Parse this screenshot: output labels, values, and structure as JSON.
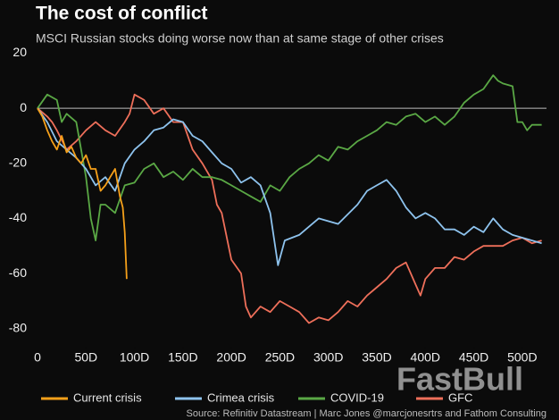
{
  "chart_data": {
    "type": "line",
    "title": "The cost of conflict",
    "subtitle": "MSCI Russian stocks doing worse now than at same stage of other crises",
    "source": "Source: Refinitiv Datastream | Marc Jones @marcjonesrtrs and Fathom Consulting",
    "watermark": "FastBull",
    "xlim": [
      0,
      525
    ],
    "ylim": [
      -84,
      20.5
    ],
    "xticks": [
      0,
      {
        "value": 50,
        "label": "50D"
      },
      {
        "value": 100,
        "label": "100D"
      },
      {
        "value": 150,
        "label": "150D"
      },
      {
        "value": 200,
        "label": "200D"
      },
      {
        "value": 250,
        "label": "250D"
      },
      {
        "value": 300,
        "label": "300D"
      },
      {
        "value": 350,
        "label": "350D"
      },
      {
        "value": 400,
        "label": "400D"
      },
      {
        "value": 450,
        "label": "450D"
      },
      {
        "value": 500,
        "label": "500D"
      }
    ],
    "yticks": [
      20,
      0,
      -20,
      -40,
      -60,
      -80
    ],
    "zero_line": true,
    "series": [
      {
        "name": "Current crisis",
        "color": "#f5a01a",
        "x": [
          0,
          5,
          10,
          15,
          20,
          25,
          30,
          35,
          40,
          45,
          50,
          55,
          60,
          65,
          70,
          75,
          80,
          85,
          88,
          90,
          92
        ],
        "values": [
          0,
          -3,
          -8,
          -12,
          -15,
          -10,
          -16,
          -14,
          -18,
          -20,
          -17,
          -22,
          -22,
          -30,
          -28,
          -25,
          -22,
          -32,
          -36,
          -45,
          -62
        ]
      },
      {
        "name": "Crimea crisis",
        "color": "#8ec3ee",
        "x": [
          0,
          10,
          20,
          30,
          40,
          50,
          60,
          70,
          80,
          90,
          100,
          110,
          120,
          130,
          140,
          150,
          160,
          170,
          180,
          190,
          200,
          210,
          220,
          230,
          240,
          248,
          255,
          270,
          290,
          310,
          330,
          340,
          350,
          360,
          370,
          380,
          390,
          400,
          410,
          420,
          430,
          440,
          450,
          460,
          470,
          480,
          490,
          500,
          510,
          520
        ],
        "values": [
          0,
          -5,
          -12,
          -15,
          -18,
          -22,
          -28,
          -25,
          -30,
          -20,
          -15,
          -12,
          -8,
          -7,
          -4,
          -5,
          -10,
          -12,
          -16,
          -20,
          -22,
          -27,
          -25,
          -28,
          -38,
          -57,
          -48,
          -46,
          -40,
          -42,
          -35,
          -30,
          -28,
          -26,
          -30,
          -36,
          -40,
          -38,
          -40,
          -44,
          -44,
          -46,
          -43,
          -45,
          -40,
          -44,
          -46,
          -47,
          -48,
          -49
        ]
      },
      {
        "name": "COVID-19",
        "color": "#5aa845",
        "x": [
          0,
          10,
          20,
          25,
          30,
          40,
          50,
          55,
          60,
          65,
          70,
          80,
          90,
          100,
          110,
          120,
          130,
          140,
          150,
          160,
          170,
          180,
          190,
          200,
          210,
          220,
          230,
          240,
          250,
          260,
          270,
          280,
          290,
          300,
          310,
          320,
          330,
          340,
          350,
          360,
          370,
          380,
          390,
          400,
          410,
          420,
          430,
          440,
          450,
          460,
          470,
          475,
          480,
          490,
          495,
          500,
          505,
          510,
          520
        ],
        "values": [
          0,
          5,
          3,
          -5,
          -2,
          -5,
          -25,
          -40,
          -48,
          -35,
          -35,
          -38,
          -28,
          -27,
          -22,
          -20,
          -25,
          -23,
          -26,
          -22,
          -25,
          -25,
          -26,
          -28,
          -30,
          -32,
          -34,
          -28,
          -30,
          -25,
          -22,
          -20,
          -17,
          -19,
          -14,
          -15,
          -12,
          -10,
          -8,
          -5,
          -6,
          -3,
          -2,
          -5,
          -3,
          -6,
          -3,
          2,
          5,
          7,
          12,
          10,
          9,
          8,
          -5,
          -5,
          -8,
          -6,
          -6
        ]
      },
      {
        "name": "GFC",
        "color": "#ee6f5a",
        "x": [
          0,
          10,
          15,
          20,
          30,
          40,
          50,
          60,
          70,
          80,
          90,
          95,
          100,
          110,
          120,
          130,
          140,
          150,
          160,
          170,
          180,
          185,
          190,
          200,
          210,
          215,
          220,
          230,
          240,
          250,
          260,
          270,
          280,
          290,
          300,
          310,
          320,
          330,
          340,
          350,
          360,
          370,
          380,
          385,
          390,
          395,
          400,
          410,
          420,
          430,
          440,
          450,
          460,
          470,
          480,
          490,
          500,
          510,
          520
        ],
        "values": [
          0,
          -3,
          -5,
          -8,
          -15,
          -12,
          -8,
          -5,
          -8,
          -10,
          -5,
          -2,
          5,
          3,
          -2,
          0,
          -5,
          -5,
          -15,
          -20,
          -26,
          -35,
          -38,
          -55,
          -60,
          -72,
          -76,
          -72,
          -74,
          -70,
          -72,
          -74,
          -78,
          -76,
          -77,
          -74,
          -70,
          -72,
          -68,
          -65,
          -62,
          -58,
          -56,
          -60,
          -64,
          -68,
          -62,
          -58,
          -58,
          -54,
          -55,
          -52,
          -50,
          -50,
          -50,
          -48,
          -47,
          -49,
          -48
        ]
      }
    ]
  }
}
